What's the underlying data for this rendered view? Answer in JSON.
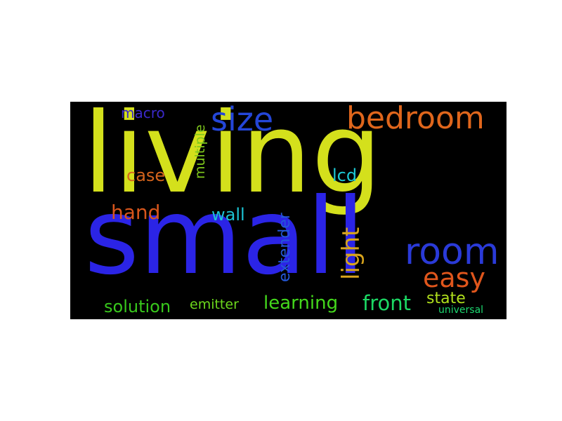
{
  "words": [
    {
      "text": "living",
      "color": "#d4e01c"
    },
    {
      "text": "small",
      "color": "#2b24e6"
    },
    {
      "text": "size",
      "color": "#2446d8"
    },
    {
      "text": "bedroom",
      "color": "#e0661c"
    },
    {
      "text": "room",
      "color": "#2a3ad8"
    },
    {
      "text": "easy",
      "color": "#e0561c"
    },
    {
      "text": "macro",
      "color": "#3a28c8"
    },
    {
      "text": "multiple",
      "color": "#7fc81c"
    },
    {
      "text": "case",
      "color": "#d4641c"
    },
    {
      "text": "lcd",
      "color": "#1cc8d4"
    },
    {
      "text": "hand",
      "color": "#d8561c"
    },
    {
      "text": "wall",
      "color": "#1cc4d4"
    },
    {
      "text": "light",
      "color": "#d8a41c"
    },
    {
      "text": "extender",
      "color": "#2458d8"
    },
    {
      "text": "solution",
      "color": "#38c81c"
    },
    {
      "text": "emitter",
      "color": "#6cd81c"
    },
    {
      "text": "learning",
      "color": "#44d81c"
    },
    {
      "text": "front",
      "color": "#1cd864"
    },
    {
      "text": "state",
      "color": "#b0e01c"
    },
    {
      "text": "universal",
      "color": "#1cd870"
    }
  ]
}
